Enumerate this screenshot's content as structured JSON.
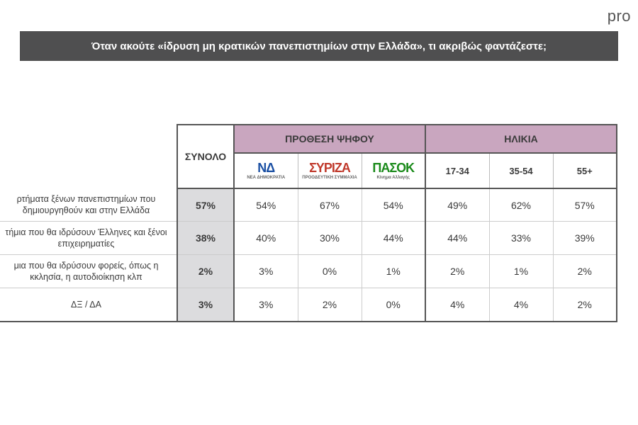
{
  "brand": "pro",
  "title": {
    "text": "Όταν ακούτε «ίδρυση μη κρατικών πανεπιστημίων στην Ελλάδα», τι ακριβώς φαντάζεστε;",
    "background": "#4f4f50",
    "color": "#ffffff"
  },
  "headers": {
    "total": "ΣΥΝΟΛΟ",
    "vote_intention": "ΠΡΟΘΕΣΗ ΨΗΦΟΥ",
    "age": "ΗΛΙΚΙΑ",
    "parties": [
      {
        "mark": "ΝΔ",
        "sub": "ΝΕΑ ΔΗΜΟΚΡΑΤΙΑ",
        "color": "#1a4fa3"
      },
      {
        "mark": "ΣΥΡΙΖΑ",
        "sub": "ΠΡΟΟΔΕΥΤΙΚΗ ΣΥΜΜΑΧΙΑ",
        "color": "#c0392b"
      },
      {
        "mark": "ΠΑΣΟΚ",
        "sub": "Κίνημα Αλλαγής",
        "color": "#1a8a1a"
      }
    ],
    "ages": [
      "17-34",
      "35-54",
      "55+"
    ],
    "vote_bg": "#c9a6bf",
    "age_bg": "#c9a6bf"
  },
  "rows": [
    {
      "label": "ρτήματα ξένων πανεπιστημίων που δημιουργηθούν και στην Ελλάδα",
      "total": "57%",
      "cells": [
        "54%",
        "67%",
        "54%",
        "49%",
        "62%",
        "57%"
      ]
    },
    {
      "label": "τήμια που θα ιδρύσουν Έλληνες και ξένοι επιχειρηματίες",
      "total": "38%",
      "cells": [
        "40%",
        "30%",
        "44%",
        "44%",
        "33%",
        "39%"
      ]
    },
    {
      "label": "μια που θα ιδρύσουν φορείς, όπως η κκλησία, η αυτοδιοίκηση κλπ",
      "total": "2%",
      "cells": [
        "3%",
        "0%",
        "1%",
        "2%",
        "1%",
        "2%"
      ]
    },
    {
      "label": "ΔΞ / ΔΑ",
      "total": "3%",
      "cells": [
        "3%",
        "2%",
        "0%",
        "4%",
        "4%",
        "2%"
      ]
    }
  ],
  "styling": {
    "total_col_bg": "#dcdcde",
    "border_dark": "#555555",
    "border_light": "#cccccc"
  }
}
